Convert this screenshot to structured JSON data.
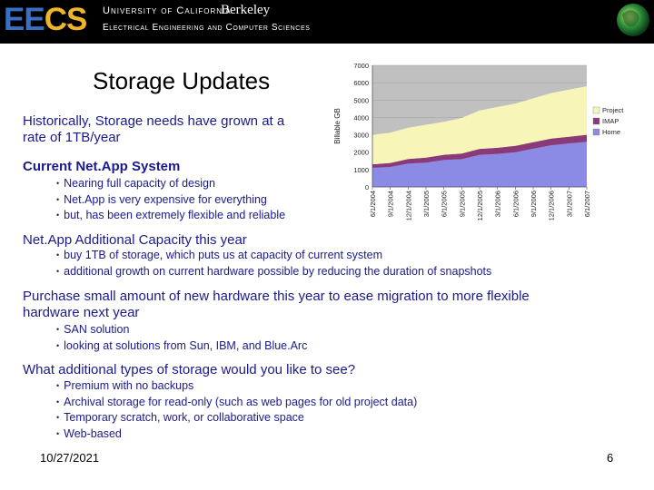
{
  "header": {
    "logo_ee": "EE",
    "logo_cs": "CS",
    "university": "University of California",
    "berkeley": "Berkeley",
    "department": "Electrical Engineering and Computer Sciences"
  },
  "slide": {
    "title": "Storage Updates",
    "section1": "Historically, Storage needs have grown at a rate of 1TB/year",
    "section2": {
      "heading": "Current Net.App System",
      "bullets": [
        "Nearing full capacity of design",
        "Net.App is very expensive for everything",
        "but, has been extremely flexible and reliable"
      ]
    },
    "section3": {
      "heading": "Net.App Additional Capacity this year",
      "bullets": [
        "buy 1TB of storage, which puts us at capacity of current system",
        "additional growth on current hardware possible by reducing the duration of snapshots"
      ]
    },
    "section4": {
      "heading": "Purchase small amount of new hardware this year to ease migration to more flexible hardware next year",
      "bullets": [
        "SAN solution",
        "looking at solutions from Sun, IBM, and Blue.Arc"
      ]
    },
    "section5": {
      "heading": "What additional types of storage would you like to see?",
      "bullets": [
        "Premium with no backups",
        "Archival storage for read-only (such as web pages for old project data)",
        "Temporary scratch, work, or collaborative space",
        "Web-based"
      ]
    },
    "date": "10/27/2021",
    "page_number": "6"
  },
  "chart_data": {
    "type": "area",
    "stacked": true,
    "title": "",
    "xlabel": "",
    "ylabel": "Billable GB",
    "ylim": [
      0,
      7000
    ],
    "yticks": [
      0,
      1000,
      2000,
      3000,
      4000,
      5000,
      6000,
      7000
    ],
    "x_tick_labels": [
      "6/1/2004",
      "9/1/2004",
      "12/1/2004",
      "3/1/2005",
      "6/1/2005",
      "9/1/2005",
      "12/1/2005",
      "3/1/2006",
      "6/1/2006",
      "9/1/2006",
      "12/1/2006",
      "3/1/2007",
      "6/1/2007"
    ],
    "legend_position": "right",
    "grid": true,
    "series": [
      {
        "name": "Home",
        "color": "#8b8be6",
        "values": [
          1100,
          1150,
          1350,
          1400,
          1550,
          1600,
          1850,
          1900,
          2000,
          2200,
          2400,
          2500,
          2600
        ]
      },
      {
        "name": "IMAP",
        "color": "#8a3a78",
        "values": [
          200,
          230,
          260,
          280,
          300,
          320,
          340,
          350,
          360,
          370,
          380,
          390,
          400
        ]
      },
      {
        "name": "Project",
        "color": "#f8f5b8",
        "values": [
          1700,
          1750,
          1800,
          1900,
          1900,
          2050,
          2210,
          2350,
          2440,
          2530,
          2620,
          2710,
          2800
        ]
      }
    ]
  }
}
